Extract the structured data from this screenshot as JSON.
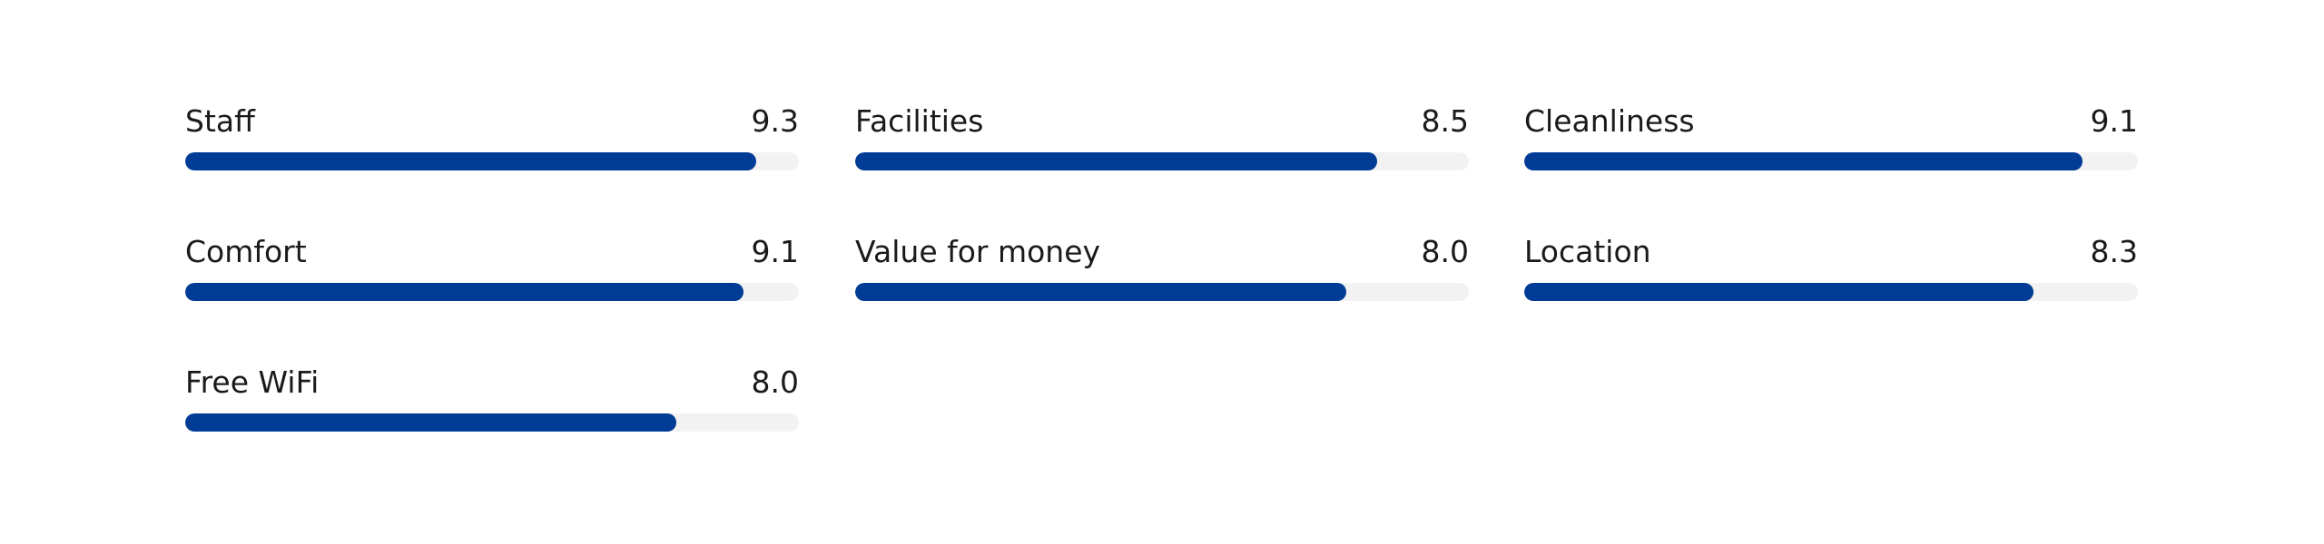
{
  "ratings": {
    "categories": [
      "Staff",
      "Facilities",
      "Cleanliness",
      "Comfort",
      "Value for money",
      "Location",
      "Free WiFi"
    ],
    "values": [
      9.3,
      8.5,
      9.1,
      9.1,
      8.0,
      8.3,
      8.0
    ],
    "value_labels": [
      "9.3",
      "8.5",
      "9.1",
      "9.1",
      "8.0",
      "8.3",
      "8.0"
    ],
    "xlim": [
      0,
      10
    ],
    "color": "#003b95"
  }
}
